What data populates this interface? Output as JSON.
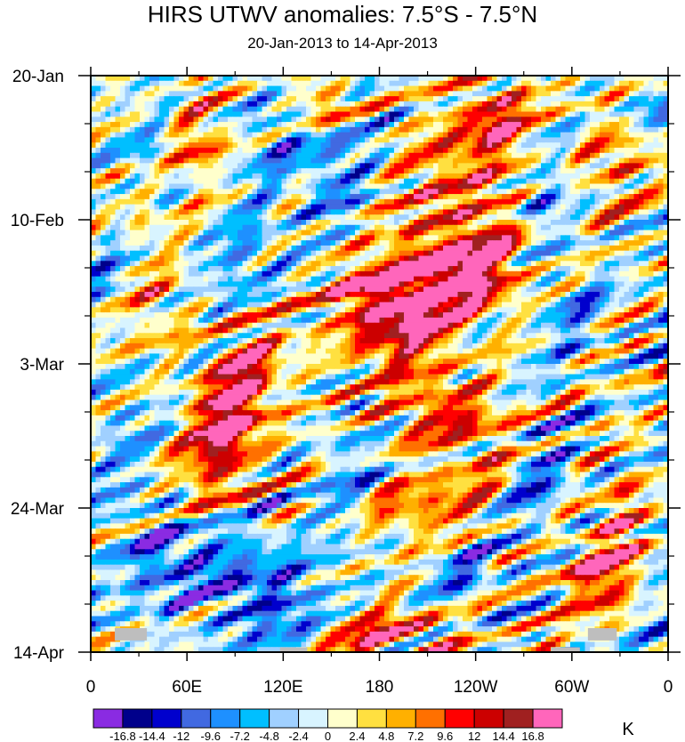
{
  "chart_data": {
    "type": "heatmap",
    "title": "HIRS UTWV anomalies: 7.5°S - 7.5°N",
    "subtitle": "20-Jan-2013 to 14-Apr-2013",
    "x_ticks": [
      "0",
      "60E",
      "120E",
      "180",
      "120W",
      "60W",
      "0"
    ],
    "x_tick_values": [
      0,
      60,
      120,
      180,
      240,
      300,
      360
    ],
    "xlim": [
      0,
      360
    ],
    "y_ticks": [
      "20-Jan",
      "10-Feb",
      "3-Mar",
      "24-Mar",
      "14-Apr"
    ],
    "y_tick_days": [
      0,
      21,
      42,
      63,
      84
    ],
    "ylim_days": [
      0,
      84
    ],
    "units": "K",
    "levels": [
      "-16.8",
      "-14.4",
      "-12",
      "-9.6",
      "-7.2",
      "-4.8",
      "-2.4",
      "0",
      "2.4",
      "4.8",
      "7.2",
      "9.6",
      "12",
      "14.4",
      "16.8"
    ],
    "level_values": [
      -16.8,
      -14.4,
      -12,
      -9.6,
      -7.2,
      -4.8,
      -2.4,
      0,
      2.4,
      4.8,
      7.2,
      9.6,
      12,
      14.4,
      16.8
    ],
    "colors": [
      "#8a2be2",
      "#00008b",
      "#0000cd",
      "#4169e1",
      "#1e90ff",
      "#00bfff",
      "#a0d0ff",
      "#d8f4ff",
      "#ffffcc",
      "#ffe040",
      "#ffb000",
      "#ff7000",
      "#ff0000",
      "#cc0000",
      "#a02020",
      "#ff66bb"
    ],
    "missing_color": "#bebebe",
    "anomaly_features": [
      {
        "lon": 147,
        "day": 4.5,
        "value": 14.5,
        "spread_lon": 14,
        "spread_day": 3
      },
      {
        "lon": 255,
        "day": 6.5,
        "value": 11,
        "spread_lon": 12,
        "spread_day": 4
      },
      {
        "lon": 225,
        "day": 14,
        "value": 8,
        "spread_lon": 28,
        "spread_day": 8
      },
      {
        "lon": 245,
        "day": 27,
        "value": 14,
        "spread_lon": 18,
        "spread_day": 5
      },
      {
        "lon": 208,
        "day": 30,
        "value": 9,
        "spread_lon": 30,
        "spread_day": 4
      },
      {
        "lon": 200,
        "day": 36.5,
        "value": 14.5,
        "spread_lon": 20,
        "spread_day": 6
      },
      {
        "lon": 168,
        "day": 32,
        "value": 9,
        "spread_lon": 18,
        "spread_day": 4
      },
      {
        "lon": 90,
        "day": 47,
        "value": 15,
        "spread_lon": 12,
        "spread_day": 8
      },
      {
        "lon": 80,
        "day": 53,
        "value": 8,
        "spread_lon": 20,
        "spread_day": 8
      },
      {
        "lon": 221,
        "day": 49,
        "value": 10,
        "spread_lon": 22,
        "spread_day": 3
      },
      {
        "lon": 250,
        "day": 55,
        "value": 6,
        "spread_lon": 25,
        "spread_day": 4
      },
      {
        "lon": 320,
        "day": 73,
        "value": 15,
        "spread_lon": 14,
        "spread_day": 4
      },
      {
        "lon": 333,
        "day": 64,
        "value": 10,
        "spread_lon": 8,
        "spread_day": 4
      },
      {
        "lon": 210,
        "day": 63,
        "value": 9,
        "spread_lon": 30,
        "spread_day": 3
      },
      {
        "lon": 185,
        "day": 81.5,
        "value": 12,
        "spread_lon": 28,
        "spread_day": 2.5
      },
      {
        "lon": 32,
        "day": 19,
        "value": 9,
        "spread_lon": 6,
        "spread_day": 3
      },
      {
        "lon": 65,
        "day": 10,
        "value": 10,
        "spread_lon": 14,
        "spread_day": 4
      },
      {
        "lon": 40,
        "day": 34,
        "value": 6,
        "spread_lon": 14,
        "spread_day": 5
      },
      {
        "lon": 330,
        "day": 12,
        "value": 8,
        "spread_lon": 14,
        "spread_day": 5
      },
      {
        "lon": 125,
        "day": 16,
        "value": 5,
        "spread_lon": 10,
        "spread_day": 5
      },
      {
        "lon": 125,
        "day": 10,
        "value": -10,
        "spread_lon": 20,
        "spread_day": 7
      },
      {
        "lon": 160,
        "day": 14,
        "value": -8,
        "spread_lon": 14,
        "spread_day": 8
      },
      {
        "lon": 95,
        "day": 28,
        "value": -8,
        "spread_lon": 16,
        "spread_day": 5
      },
      {
        "lon": 38,
        "day": 12,
        "value": -8,
        "spread_lon": 10,
        "spread_day": 5
      },
      {
        "lon": 282,
        "day": 19,
        "value": -10,
        "spread_lon": 10,
        "spread_day": 5
      },
      {
        "lon": 348,
        "day": 5,
        "value": -8,
        "spread_lon": 12,
        "spread_day": 3
      },
      {
        "lon": 278,
        "day": 58,
        "value": -12,
        "spread_lon": 12,
        "spread_day": 6
      },
      {
        "lon": 75,
        "day": 72,
        "value": -12,
        "spread_lon": 25,
        "spread_day": 5
      },
      {
        "lon": 120,
        "day": 78,
        "value": -11,
        "spread_lon": 18,
        "spread_day": 5
      },
      {
        "lon": 40,
        "day": 68,
        "value": -9,
        "spread_lon": 12,
        "spread_day": 5
      },
      {
        "lon": 232,
        "day": 72,
        "value": -8,
        "spread_lon": 14,
        "spread_day": 4
      },
      {
        "lon": 160,
        "day": 60,
        "value": -8,
        "spread_lon": 12,
        "spread_day": 6
      },
      {
        "lon": 20,
        "day": 55,
        "value": -6,
        "spread_lon": 15,
        "spread_day": 8
      },
      {
        "lon": 300,
        "day": 35,
        "value": -7,
        "spread_lon": 14,
        "spread_day": 5
      },
      {
        "lon": 8,
        "day": 30,
        "value": -7,
        "spread_lon": 8,
        "spread_day": 5
      },
      {
        "lon": 350,
        "day": 80,
        "value": -6,
        "spread_lon": 10,
        "spread_day": 5
      }
    ],
    "missing_regions": [
      {
        "lon_from": 15,
        "lon_to": 35,
        "day_from": 80.5,
        "day_to": 82.3
      },
      {
        "lon_from": 310,
        "lon_to": 328,
        "day_from": 80.5,
        "day_to": 82.3
      },
      {
        "lon_from": 118,
        "lon_to": 135,
        "day_from": 83.3,
        "day_to": 84
      },
      {
        "lon_from": 287,
        "lon_to": 305,
        "day_from": 83.3,
        "day_to": 84
      }
    ]
  }
}
